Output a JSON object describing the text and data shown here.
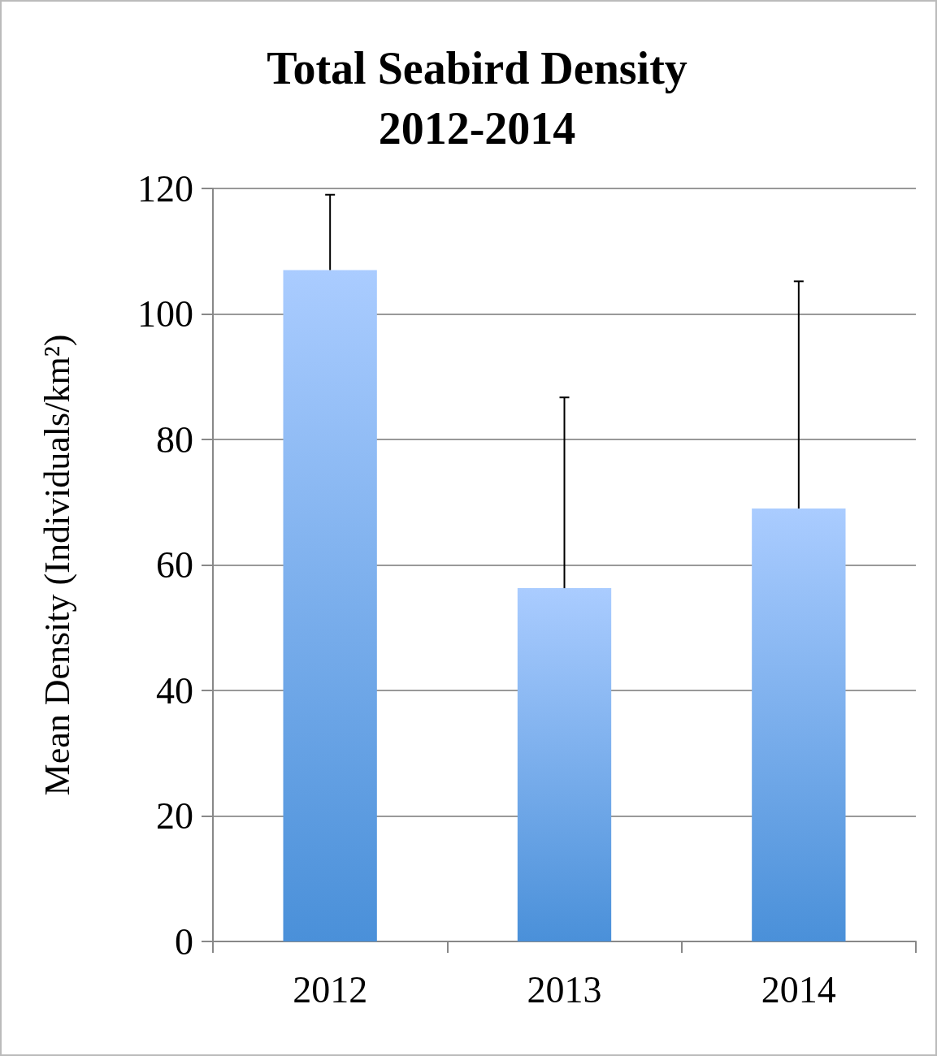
{
  "chart_data": {
    "type": "bar",
    "title": "Total Seabird Density\n2012-2014",
    "ylabel": "Mean Density (Individuals/km²)",
    "categories": [
      "2012",
      "2013",
      "2014"
    ],
    "values": [
      107,
      56.3,
      69
    ],
    "errors": [
      [
        107,
        119
      ],
      [
        56.3,
        86.7
      ],
      [
        69,
        105.2
      ]
    ],
    "color": "#4a90d9",
    "ylim": [
      0,
      120
    ],
    "yticks": [
      0,
      20,
      40,
      60,
      80,
      100,
      120
    ],
    "grid": "y"
  }
}
